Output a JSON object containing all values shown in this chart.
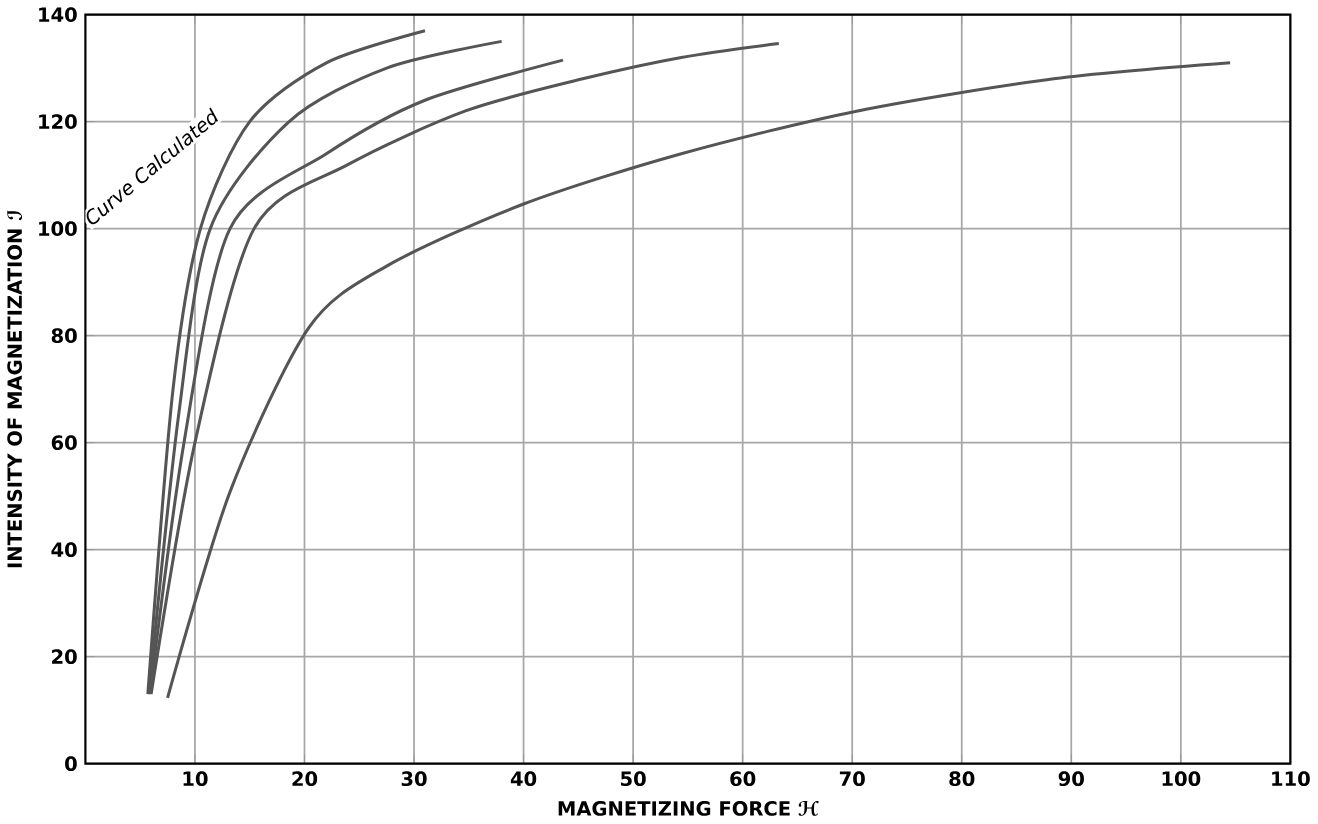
{
  "chart_data": {
    "type": "line",
    "xlabel": "MAGNETIZING FORCE ℋ",
    "ylabel": "INTENSITY OF MAGNETIZATION ℐ",
    "xlim": [
      0,
      110
    ],
    "ylim": [
      0,
      140
    ],
    "xticks": [
      10,
      20,
      30,
      40,
      50,
      60,
      70,
      80,
      90,
      100,
      110
    ],
    "yticks": [
      0,
      20,
      40,
      60,
      80,
      100,
      120,
      140
    ],
    "grid": true,
    "marker": "none",
    "line_style": "solid",
    "annotations": [
      "Curve Calculated"
    ],
    "series": [
      {
        "color": "#555555",
        "x": [
          5.7,
          8,
          10.5,
          15,
          22,
          31
        ],
        "values": [
          13,
          70,
          100,
          120,
          131,
          137
        ]
      },
      {
        "color": "#555555",
        "x": [
          5.8,
          8.5,
          11.4,
          18.6,
          27.5,
          38
        ],
        "values": [
          13,
          65,
          100,
          120,
          130,
          135
        ]
      },
      {
        "color": "#555555",
        "x": [
          5.9,
          9,
          13.2,
          22,
          31,
          43.6
        ],
        "values": [
          13,
          60,
          100,
          114,
          124,
          131.5
        ]
      },
      {
        "color": "#555555",
        "x": [
          6,
          10,
          15.4,
          24,
          34.7,
          45.4,
          54.4,
          63.3
        ],
        "values": [
          13,
          60,
          100,
          112,
          122,
          128,
          132,
          134.6
        ]
      },
      {
        "color": "#555555",
        "x": [
          7.5,
          13.2,
          20.4,
          27.5,
          40,
          54.4,
          70.5,
          88.4,
          104.5
        ],
        "values": [
          12.3,
          50.8,
          81.5,
          93,
          104.6,
          114,
          122,
          128,
          131
        ]
      }
    ]
  }
}
